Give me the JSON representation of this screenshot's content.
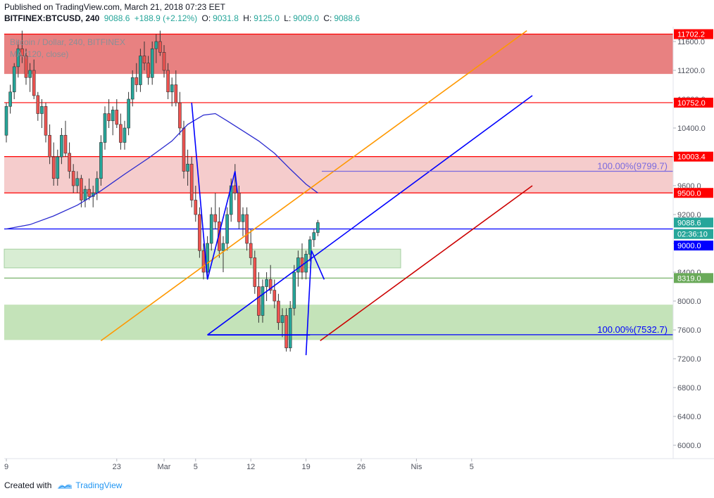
{
  "header": {
    "published": "Published on TradingView.com, March 21, 2018 07:23 EET",
    "symbol": "BITFINEX:BTCUSD, 240",
    "last": "9088.6",
    "change": "+188.9 (+2.12%)",
    "o_label": "O:",
    "o": "9031.8",
    "h_label": "H:",
    "h": "9125.0",
    "l_label": "L:",
    "l": "9009.0",
    "c_label": "C:",
    "c": "9088.6"
  },
  "legend": {
    "series": "Bitcoin / Dollar, 240, BITFINEX",
    "indicator": "MA (120, close)"
  },
  "footer": {
    "created_with": "Created with",
    "brand": "TradingView"
  },
  "colors": {
    "bull": "#26a69a",
    "bear": "#ef5350",
    "ma": "#2a2acf",
    "red_line": "#ff0000",
    "orange": "#ff9800",
    "blue_channel": "#0000ff",
    "darkred": "#cc0000",
    "support_green": "#6aaa5a"
  },
  "chart_data": {
    "type": "candlestick",
    "title": "Bitcoin / Dollar, 240, BITFINEX",
    "ylim": [
      5800,
      11800
    ],
    "x_ticks": [
      {
        "label": "9",
        "day": 0
      },
      {
        "label": "23",
        "day": 14
      },
      {
        "label": "Mar",
        "day": 20
      },
      {
        "label": "5",
        "day": 24
      },
      {
        "label": "12",
        "day": 31
      },
      {
        "label": "19",
        "day": 38
      },
      {
        "label": "26",
        "day": 45
      },
      {
        "label": "Nis",
        "day": 52
      },
      {
        "label": "5",
        "day": 59
      }
    ],
    "y_ticks": [
      6000,
      6400,
      6800,
      7200,
      7600,
      8000,
      8400,
      8800,
      9200,
      9600,
      10000,
      10400,
      10800,
      11200,
      11600
    ],
    "price_flags": [
      {
        "label": "11702.2",
        "value": 11702.2,
        "color": "#ff0000"
      },
      {
        "label": "10752.0",
        "value": 10752.0,
        "color": "#ff0000"
      },
      {
        "label": "10003.4",
        "value": 10003.4,
        "color": "#ff0000"
      },
      {
        "label": "9500.0",
        "value": 9500.0,
        "color": "#ff0000"
      },
      {
        "label": "9088.6",
        "value": 9088.6,
        "color": "#26a69a"
      },
      {
        "label": "02:36:10",
        "value": 8930,
        "color": "#26a69a"
      },
      {
        "label": "9000.0",
        "value": 8770,
        "color": "#0000ff"
      },
      {
        "label": "8319.0",
        "value": 8319.0,
        "color": "#6aaa5a"
      }
    ],
    "zones": [
      {
        "name": "resistance-top",
        "from": 11150,
        "to": 11702.2,
        "color": "#e57373",
        "opacity": 0.9
      },
      {
        "name": "resistance-mid",
        "from": 9500,
        "to": 10003.4,
        "color": "#f4c7c7",
        "opacity": 0.9
      },
      {
        "name": "support-upper",
        "from": 8460,
        "to": 8720,
        "color": "#c8e6c0",
        "opacity": 0.7,
        "end_day": 50
      },
      {
        "name": "support-lower",
        "from": 7460,
        "to": 7950,
        "color": "#b5dca8",
        "opacity": 0.8
      }
    ],
    "hlines": [
      {
        "value": 11702.2,
        "color": "#ff0000"
      },
      {
        "value": 10752.0,
        "color": "#ff0000"
      },
      {
        "value": 10003.4,
        "color": "#ff0000"
      },
      {
        "value": 9500.0,
        "color": "#ff0000"
      },
      {
        "value": 9000.0,
        "color": "#0000ff"
      },
      {
        "value": 8319.0,
        "color": "#6aaa5a"
      }
    ],
    "fib_labels": [
      {
        "text": "100.00%(9799.7)",
        "value": 9799.7,
        "from_day": 40,
        "color": "#7a6adf"
      },
      {
        "text": "100.00%(7532.7)",
        "value": 7532.7,
        "from_day": 25.5,
        "color": "#0000ff"
      }
    ],
    "ma_points": [
      [
        0,
        9000
      ],
      [
        3,
        9060
      ],
      [
        6,
        9180
      ],
      [
        9,
        9330
      ],
      [
        12,
        9530
      ],
      [
        15,
        9760
      ],
      [
        18,
        9980
      ],
      [
        21,
        10220
      ],
      [
        23,
        10450
      ],
      [
        25,
        10580
      ],
      [
        26.5,
        10600
      ],
      [
        28,
        10500
      ],
      [
        30,
        10360
      ],
      [
        32,
        10220
      ],
      [
        34,
        10050
      ],
      [
        36,
        9830
      ],
      [
        38,
        9620
      ],
      [
        39.5,
        9500
      ]
    ],
    "pattern_lines": [
      {
        "color": "#0000ff",
        "points": [
          [
            23.5,
            10750
          ],
          [
            25.5,
            8300
          ],
          [
            29,
            9800
          ],
          [
            29.3,
            9500
          ]
        ]
      },
      {
        "color": "#0000ff",
        "points": [
          [
            25.5,
            7530
          ],
          [
            38.5,
            7530
          ]
        ]
      },
      {
        "color": "#0000ff",
        "points": [
          [
            38.0,
            7250
          ],
          [
            38.7,
            8700
          ],
          [
            40.3,
            8300
          ]
        ]
      }
    ],
    "trend_lines": [
      {
        "color": "#ff9800",
        "from": [
          12,
          7450
        ],
        "to": [
          66,
          11750
        ]
      },
      {
        "color": "#0000ff",
        "from": [
          25.5,
          7530
        ],
        "to": [
          66.7,
          10850
        ]
      },
      {
        "color": "#cc0000",
        "from": [
          39.8,
          7450
        ],
        "to": [
          66.7,
          9600
        ]
      }
    ],
    "candles": [
      [
        0,
        10300,
        10750,
        10200,
        10700
      ],
      [
        0.5,
        10700,
        11000,
        10600,
        10900
      ],
      [
        1,
        10900,
        11300,
        10800,
        11250
      ],
      [
        1.5,
        11250,
        11600,
        11100,
        11500
      ],
      [
        2,
        11500,
        11750,
        11300,
        11400
      ],
      [
        2.5,
        11400,
        11500,
        11000,
        11100
      ],
      [
        3,
        11100,
        11300,
        10900,
        11200
      ],
      [
        3.5,
        11200,
        11350,
        10800,
        10850
      ],
      [
        4,
        10850,
        10900,
        10500,
        10600
      ],
      [
        4.5,
        10600,
        10800,
        10400,
        10700
      ],
      [
        5,
        10700,
        10750,
        10200,
        10300
      ],
      [
        5.5,
        10300,
        10450,
        9900,
        10000
      ],
      [
        6,
        10000,
        10200,
        9600,
        9700
      ],
      [
        6.5,
        9700,
        10100,
        9600,
        10000
      ],
      [
        7,
        10000,
        10400,
        9900,
        10300
      ],
      [
        7.5,
        10300,
        10500,
        10000,
        10050
      ],
      [
        8,
        10050,
        10200,
        9700,
        9800
      ],
      [
        8.5,
        9800,
        9900,
        9500,
        9600
      ],
      [
        9,
        9600,
        9800,
        9500,
        9700
      ],
      [
        9.5,
        9700,
        9750,
        9300,
        9400
      ],
      [
        10,
        9400,
        9600,
        9300,
        9550
      ],
      [
        10.5,
        9550,
        9700,
        9400,
        9450
      ],
      [
        11,
        9450,
        9600,
        9300,
        9500
      ],
      [
        11.5,
        9500,
        9800,
        9400,
        9700
      ],
      [
        12,
        9700,
        10300,
        9600,
        10200
      ],
      [
        12.5,
        10200,
        10700,
        10100,
        10600
      ],
      [
        13,
        10600,
        10800,
        10400,
        10500
      ],
      [
        13.5,
        10500,
        10700,
        10300,
        10650
      ],
      [
        14,
        10650,
        10800,
        10400,
        10450
      ],
      [
        14.5,
        10450,
        10600,
        10100,
        10200
      ],
      [
        15,
        10200,
        10500,
        10100,
        10400
      ],
      [
        15.5,
        10400,
        10900,
        10300,
        10800
      ],
      [
        16,
        10800,
        11200,
        10700,
        11100
      ],
      [
        16.5,
        11100,
        11300,
        10900,
        11000
      ],
      [
        17,
        11000,
        11500,
        10900,
        11400
      ],
      [
        17.5,
        11400,
        11600,
        11200,
        11300
      ],
      [
        18,
        11300,
        11400,
        11000,
        11100
      ],
      [
        18.5,
        11100,
        11600,
        11000,
        11500
      ],
      [
        19,
        11500,
        11700,
        11300,
        11600
      ],
      [
        19.5,
        11600,
        11750,
        11400,
        11450
      ],
      [
        20,
        11450,
        11550,
        11100,
        11200
      ],
      [
        20.5,
        11200,
        11300,
        10800,
        10900
      ],
      [
        21,
        10900,
        11100,
        10700,
        11000
      ],
      [
        21.5,
        11000,
        11200,
        10700,
        10750
      ],
      [
        22,
        10750,
        10900,
        10300,
        10400
      ],
      [
        22.5,
        10400,
        10500,
        9700,
        9800
      ],
      [
        23,
        9800,
        10100,
        9600,
        9900
      ],
      [
        23.5,
        9900,
        10000,
        9300,
        9400
      ],
      [
        24,
        9400,
        9600,
        9100,
        9200
      ],
      [
        24.5,
        9200,
        9300,
        8600,
        8700
      ],
      [
        25,
        8700,
        8800,
        8300,
        8400
      ],
      [
        25.5,
        8400,
        8900,
        8300,
        8800
      ],
      [
        26,
        8800,
        9300,
        8700,
        9200
      ],
      [
        26.5,
        9200,
        9500,
        9000,
        9100
      ],
      [
        27,
        9100,
        9300,
        8600,
        8700
      ],
      [
        27.5,
        8700,
        8900,
        8400,
        8800
      ],
      [
        28,
        8800,
        9300,
        8700,
        9200
      ],
      [
        28.5,
        9200,
        9700,
        9100,
        9600
      ],
      [
        29,
        9600,
        9900,
        9400,
        9500
      ],
      [
        29.5,
        9500,
        9600,
        9000,
        9100
      ],
      [
        30,
        9100,
        9300,
        8900,
        9200
      ],
      [
        30.5,
        9200,
        9300,
        8700,
        8800
      ],
      [
        31,
        8800,
        9000,
        8500,
        8600
      ],
      [
        31.5,
        8600,
        8700,
        8100,
        8200
      ],
      [
        32,
        8200,
        8400,
        7700,
        7800
      ],
      [
        32.5,
        7800,
        8300,
        7700,
        8200
      ],
      [
        33,
        8200,
        8400,
        8000,
        8300
      ],
      [
        33.5,
        8300,
        8500,
        8100,
        8150
      ],
      [
        34,
        8150,
        8300,
        7900,
        8000
      ],
      [
        34.5,
        8000,
        8100,
        7600,
        7700
      ],
      [
        35,
        7700,
        7900,
        7500,
        7800
      ],
      [
        35.5,
        7800,
        7900,
        7300,
        7350
      ],
      [
        36,
        7350,
        8000,
        7300,
        7900
      ],
      [
        36.5,
        7900,
        8500,
        7800,
        8400
      ],
      [
        37,
        8400,
        8700,
        8200,
        8600
      ],
      [
        37.5,
        8600,
        8800,
        8300,
        8400
      ],
      [
        38,
        8400,
        8700,
        8300,
        8650
      ],
      [
        38.5,
        8650,
        8900,
        8550,
        8850
      ],
      [
        39,
        8850,
        9000,
        8750,
        8950
      ],
      [
        39.5,
        8950,
        9125,
        8900,
        9088.6
      ]
    ]
  }
}
